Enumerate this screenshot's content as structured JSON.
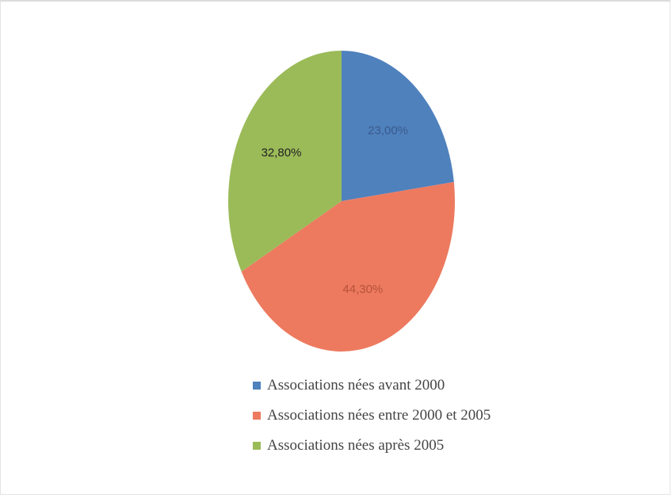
{
  "chart_data": {
    "type": "pie",
    "categories": [
      "Associations nées avant 2000",
      "Associations nées entre 2000 et 2005",
      "Associations nées après 2005"
    ],
    "values": [
      23.0,
      44.3,
      32.8
    ],
    "labels": [
      "23,00%",
      "44,30%",
      "32,80%"
    ],
    "colors": [
      "#4f81bd",
      "#ed7a5f",
      "#9bbb59"
    ],
    "label_colors": [
      "#3a5a8c",
      "#b5523a",
      "#222222"
    ],
    "legend_position": "bottom",
    "start_angle": "top, clockwise"
  }
}
